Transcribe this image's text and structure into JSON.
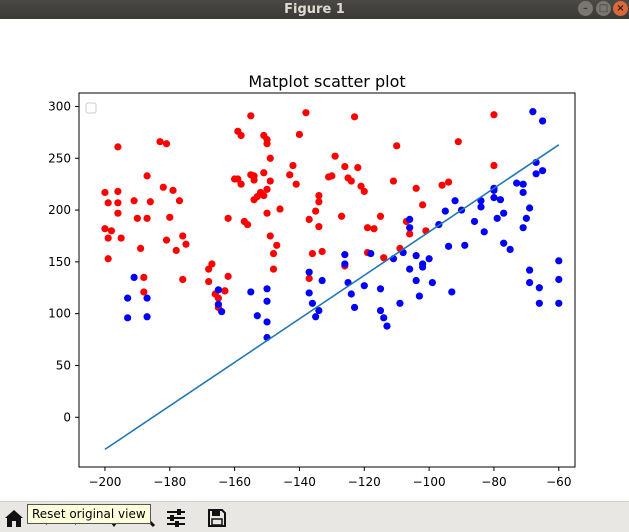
{
  "window": {
    "title": "Figure 1",
    "buttons": {
      "minimize": "–",
      "maximize": "□",
      "close": "×"
    }
  },
  "toolbar": {
    "tools": [
      {
        "name": "home-button",
        "icon": "home-icon"
      },
      {
        "name": "back-button",
        "icon": "arrow-left-icon"
      },
      {
        "name": "forward-button",
        "icon": "arrow-right-icon"
      },
      {
        "name": "pan-button",
        "icon": "move-icon"
      },
      {
        "name": "zoom-button",
        "icon": "zoom-icon"
      },
      {
        "name": "subplots-button",
        "icon": "sliders-icon"
      },
      {
        "name": "save-button",
        "icon": "floppy-disk-icon"
      }
    ],
    "tooltip": "Reset original view"
  },
  "chart_data": {
    "type": "scatter",
    "title": "Matplot scatter plot",
    "xlabel": "",
    "ylabel": "",
    "xlim": [
      -208,
      -55
    ],
    "ylim": [
      -48,
      313
    ],
    "xticks": [
      -200,
      -180,
      -160,
      -140,
      -120,
      -100,
      -80,
      -60
    ],
    "yticks": [
      0,
      50,
      100,
      150,
      200,
      250,
      300
    ],
    "grid": false,
    "legend": "top-left",
    "colors": {
      "red": "#ff0000",
      "blue": "#0000ff",
      "line": "#1f77b4"
    },
    "series": [
      {
        "color": "red",
        "points": [
          [
            -200,
            217
          ],
          [
            -200,
            182
          ],
          [
            -199,
            207
          ],
          [
            -199,
            173
          ],
          [
            -199,
            153
          ],
          [
            -198,
            180
          ],
          [
            -196,
            261
          ],
          [
            -196,
            218
          ],
          [
            -196,
            207
          ],
          [
            -196,
            197
          ],
          [
            -195,
            173
          ],
          [
            -191,
            209
          ],
          [
            -190,
            192
          ],
          [
            -189,
            163
          ],
          [
            -188,
            135
          ],
          [
            -188,
            121
          ],
          [
            -187,
            233
          ],
          [
            -187,
            192
          ],
          [
            -186,
            208
          ],
          [
            -183,
            266
          ],
          [
            -182,
            222
          ],
          [
            -181,
            264
          ],
          [
            -181,
            171
          ],
          [
            -180,
            193
          ],
          [
            -179,
            219
          ],
          [
            -178,
            161
          ],
          [
            -177,
            209
          ],
          [
            -176,
            175
          ],
          [
            -175,
            167
          ],
          [
            -176,
            133
          ],
          [
            -168,
            143
          ],
          [
            -168,
            131
          ],
          [
            -167,
            148
          ],
          [
            -166,
            119
          ],
          [
            -165,
            115
          ],
          [
            -165,
            106
          ],
          [
            -163,
            122
          ],
          [
            -163,
            122
          ],
          [
            -162,
            136
          ],
          [
            -162,
            192
          ],
          [
            -160,
            230
          ],
          [
            -159,
            276
          ],
          [
            -159,
            230
          ],
          [
            -158,
            225
          ],
          [
            -158,
            272
          ],
          [
            -157,
            189
          ],
          [
            -156,
            186
          ],
          [
            -155,
            234
          ],
          [
            -155,
            291
          ],
          [
            -154,
            233
          ],
          [
            -154,
            229
          ],
          [
            -154,
            210
          ],
          [
            -153,
            213
          ],
          [
            -152,
            217
          ],
          [
            -151,
            236
          ],
          [
            -150,
            220
          ],
          [
            -151,
            272
          ],
          [
            -150,
            268
          ],
          [
            -151,
            214
          ],
          [
            -150,
            197
          ],
          [
            -150,
            264
          ],
          [
            -149,
            250
          ],
          [
            -149,
            228
          ],
          [
            -149,
            175
          ],
          [
            -148,
            158
          ],
          [
            -148,
            143
          ],
          [
            -147,
            166
          ],
          [
            -146,
            201
          ],
          [
            -143,
            234
          ],
          [
            -142,
            243
          ],
          [
            -141,
            225
          ],
          [
            -140,
            273
          ],
          [
            -138,
            294
          ],
          [
            -137,
            134
          ],
          [
            -137,
            191
          ],
          [
            -136,
            158
          ],
          [
            -135,
            199
          ],
          [
            -134,
            184
          ],
          [
            -134,
            214
          ],
          [
            -134,
            208
          ],
          [
            -133,
            160
          ],
          [
            -131,
            232
          ],
          [
            -130,
            233
          ],
          [
            -129,
            252
          ],
          [
            -127,
            194
          ],
          [
            -126,
            242
          ],
          [
            -126,
            146
          ],
          [
            -125,
            231
          ],
          [
            -124,
            228
          ],
          [
            -123,
            290
          ],
          [
            -122,
            241
          ],
          [
            -121,
            223
          ],
          [
            -120,
            218
          ],
          [
            -119,
            183
          ],
          [
            -119,
            159
          ],
          [
            -117,
            182
          ],
          [
            -115,
            194
          ],
          [
            -114,
            154
          ],
          [
            -111,
            228
          ],
          [
            -110,
            262
          ],
          [
            -109,
            163
          ],
          [
            -107,
            189
          ],
          [
            -106,
            177
          ],
          [
            -104,
            221
          ],
          [
            -102,
            205
          ],
          [
            -101,
            180
          ],
          [
            -96,
            224
          ],
          [
            -94,
            227
          ],
          [
            -91,
            266
          ],
          [
            -80,
            292
          ],
          [
            -80,
            243
          ]
        ]
      },
      {
        "color": "blue",
        "points": [
          [
            -193,
            115
          ],
          [
            -193,
            96
          ],
          [
            -191,
            135
          ],
          [
            -187,
            115
          ],
          [
            -187,
            97
          ],
          [
            -165,
            123
          ],
          [
            -165,
            109
          ],
          [
            -164,
            102
          ],
          [
            -155,
            121
          ],
          [
            -153,
            98
          ],
          [
            -150,
            124
          ],
          [
            -150,
            112
          ],
          [
            -150,
            92
          ],
          [
            -150,
            77
          ],
          [
            -137,
            140
          ],
          [
            -137,
            120
          ],
          [
            -136,
            110
          ],
          [
            -135,
            97
          ],
          [
            -134,
            103
          ],
          [
            -133,
            132
          ],
          [
            -126,
            157
          ],
          [
            -126,
            148
          ],
          [
            -125,
            130
          ],
          [
            -124,
            119
          ],
          [
            -123,
            106
          ],
          [
            -120,
            127
          ],
          [
            -118,
            158
          ],
          [
            -115,
            124
          ],
          [
            -115,
            103
          ],
          [
            -114,
            96
          ],
          [
            -113,
            88
          ],
          [
            -111,
            153
          ],
          [
            -109,
            110
          ],
          [
            -108,
            159
          ],
          [
            -106,
            191
          ],
          [
            -106,
            183
          ],
          [
            -106,
            143
          ],
          [
            -104,
            156
          ],
          [
            -104,
            132
          ],
          [
            -103,
            117
          ],
          [
            -102,
            148
          ],
          [
            -102,
            145
          ],
          [
            -100,
            153
          ],
          [
            -99,
            130
          ],
          [
            -97,
            186
          ],
          [
            -95,
            199
          ],
          [
            -94,
            165
          ],
          [
            -93,
            121
          ],
          [
            -92,
            209
          ],
          [
            -90,
            200
          ],
          [
            -89,
            166
          ],
          [
            -86,
            189
          ],
          [
            -84,
            209
          ],
          [
            -84,
            203
          ],
          [
            -83,
            179
          ],
          [
            -80,
            212
          ],
          [
            -80,
            219
          ],
          [
            -80,
            221
          ],
          [
            -79,
            192
          ],
          [
            -78,
            210
          ],
          [
            -77,
            197
          ],
          [
            -77,
            168
          ],
          [
            -75,
            162
          ],
          [
            -73,
            226
          ],
          [
            -71,
            225
          ],
          [
            -71,
            217
          ],
          [
            -71,
            183
          ],
          [
            -70,
            192
          ],
          [
            -69,
            202
          ],
          [
            -69,
            142
          ],
          [
            -69,
            130
          ],
          [
            -68,
            295
          ],
          [
            -67,
            246
          ],
          [
            -67,
            235
          ],
          [
            -66,
            125
          ],
          [
            -66,
            110
          ],
          [
            -65,
            286
          ],
          [
            -65,
            238
          ],
          [
            -60,
            151
          ],
          [
            -60,
            133
          ],
          [
            -60,
            110
          ]
        ]
      },
      {
        "color": "line",
        "kind": "line",
        "points": [
          [
            -200,
            -31
          ],
          [
            -60,
            263
          ]
        ]
      }
    ]
  }
}
